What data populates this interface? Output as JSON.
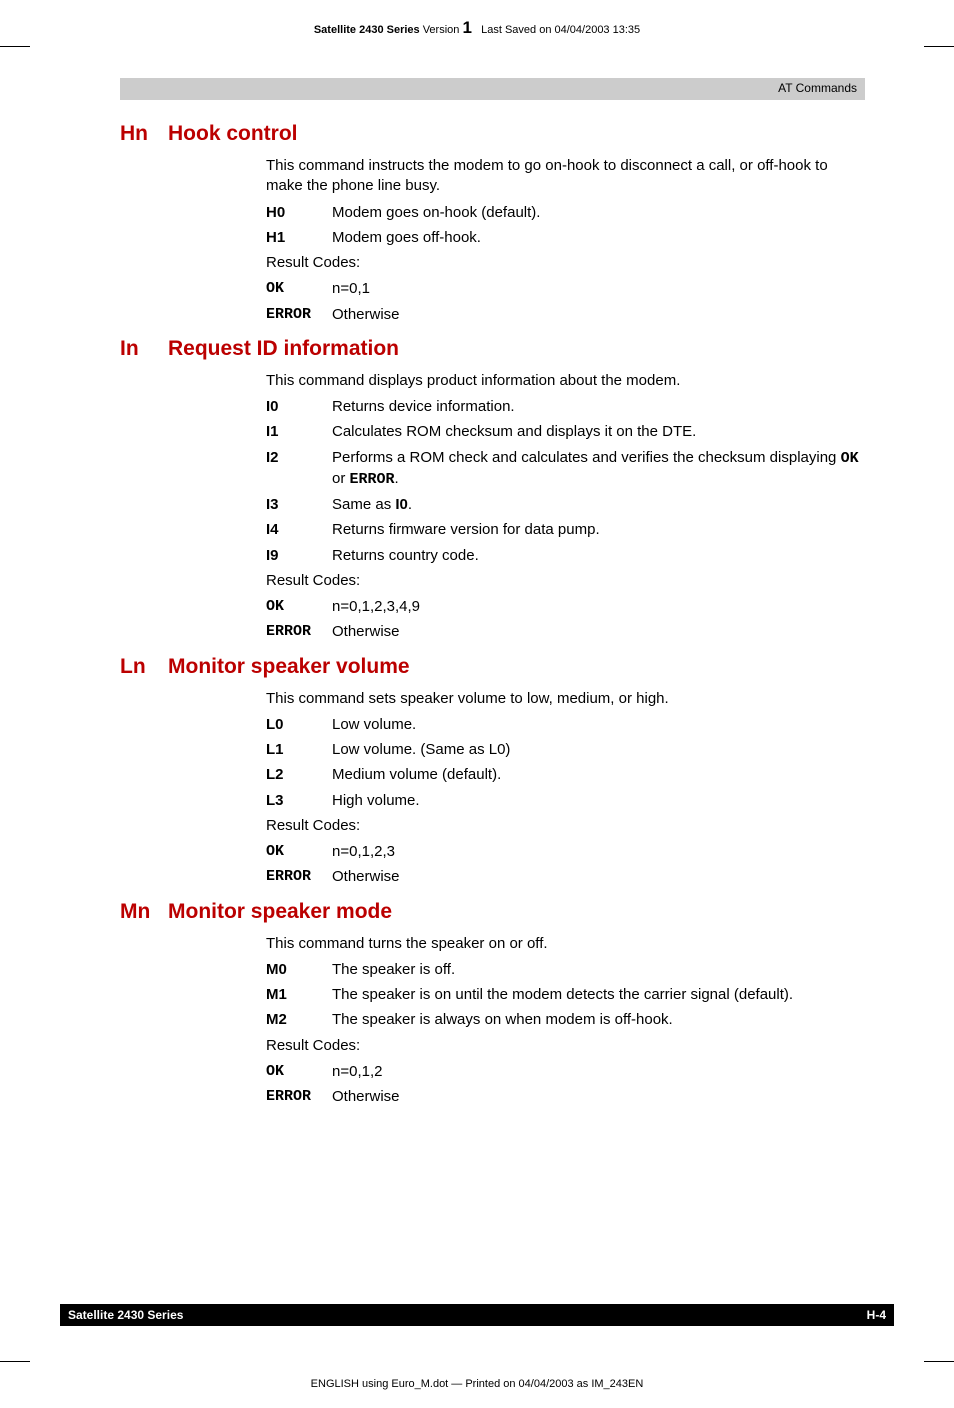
{
  "header": {
    "product": "Satellite 2430 Series",
    "version_label": "Version",
    "version_num": "1",
    "saved": "Last Saved on 04/04/2003 13:35"
  },
  "topbar": {
    "label": "AT Commands"
  },
  "sections": {
    "hn": {
      "key": "Hn",
      "title": "Hook control",
      "intro": "This command instructs the modem to go on-hook to disconnect a call, or off-hook to make the phone line busy.",
      "rows": [
        {
          "k": "H0",
          "v": "Modem goes on-hook (default)."
        },
        {
          "k": "H1",
          "v": "Modem goes off-hook."
        }
      ],
      "result_label": "Result Codes:",
      "results": [
        {
          "k": "OK",
          "v": "n=0,1"
        },
        {
          "k": "ERROR",
          "v": "Otherwise"
        }
      ]
    },
    "in": {
      "key": "In",
      "title": "Request ID information",
      "intro": "This command displays product information about the modem.",
      "rows": [
        {
          "k": "I0",
          "v": "Returns device information."
        },
        {
          "k": "I1",
          "v": "Calculates ROM checksum and displays it on the DTE."
        },
        {
          "k": "I2",
          "v_pre": "Performs a ROM check and calculates and verifies the checksum displaying ",
          "m1": "OK",
          "mid": " or ",
          "m2": "ERROR",
          "post": "."
        },
        {
          "k": "I3",
          "v_pre": "Same as ",
          "b": "I0",
          "post": "."
        },
        {
          "k": "I4",
          "v": "Returns firmware version for data pump."
        },
        {
          "k": "I9",
          "v": "Returns country code."
        }
      ],
      "result_label": "Result Codes:",
      "results": [
        {
          "k": "OK",
          "v": "n=0,1,2,3,4,9"
        },
        {
          "k": "ERROR",
          "v": "Otherwise"
        }
      ]
    },
    "ln": {
      "key": "Ln",
      "title": "Monitor speaker volume",
      "intro": "This command sets speaker volume to low, medium, or high.",
      "rows": [
        {
          "k": "L0",
          "v": "Low volume."
        },
        {
          "k": "L1",
          "v": "Low volume. (Same as L0)"
        },
        {
          "k": "L2",
          "v": "Medium volume (default)."
        },
        {
          "k": "L3",
          "v": "High volume."
        }
      ],
      "result_label": "Result Codes:",
      "results": [
        {
          "k": "OK",
          "v": "n=0,1,2,3"
        },
        {
          "k": "ERROR",
          "v": "Otherwise"
        }
      ]
    },
    "mn": {
      "key": "Mn",
      "title": "Monitor speaker mode",
      "intro": "This command turns the speaker on or off.",
      "rows": [
        {
          "k": "M0",
          "v": "The speaker is off."
        },
        {
          "k": "M1",
          "v": "The speaker is on until the modem detects the carrier signal (default)."
        },
        {
          "k": "M2",
          "v": "The speaker is always on when modem is off-hook."
        }
      ],
      "result_label": "Result Codes:",
      "results": [
        {
          "k": "OK",
          "v": "n=0,1,2"
        },
        {
          "k": "ERROR",
          "v": "Otherwise"
        }
      ]
    }
  },
  "footer": {
    "left": "Satellite 2430 Series",
    "right": "H-4"
  },
  "bottom": "ENGLISH using  Euro_M.dot — Printed on 04/04/2003 as IM_243EN"
}
